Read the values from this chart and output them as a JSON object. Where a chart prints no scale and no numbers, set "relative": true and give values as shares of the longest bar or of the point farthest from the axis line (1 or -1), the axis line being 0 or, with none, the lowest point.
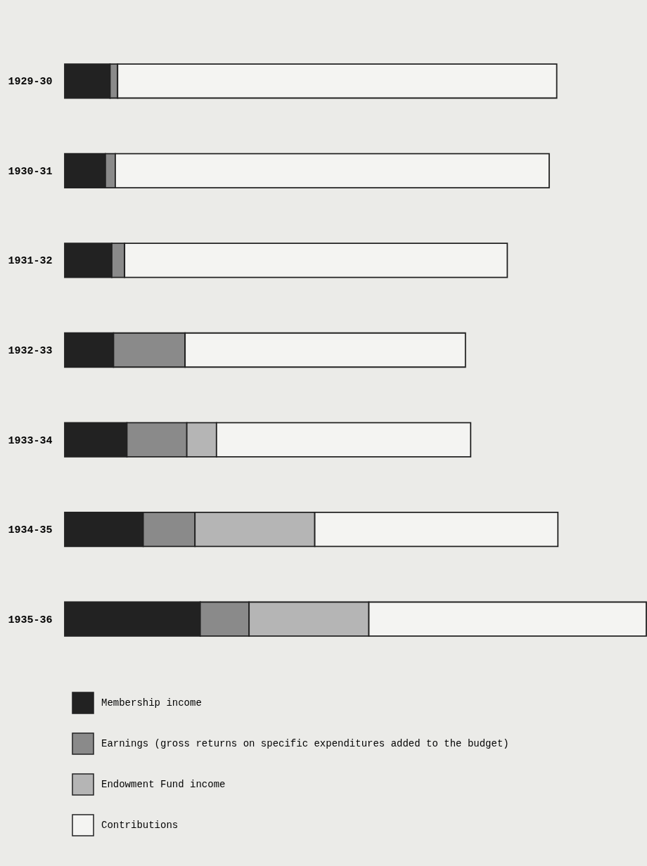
{
  "chart_data": {
    "type": "bar",
    "orientation": "horizontal",
    "stacked": true,
    "relative": true,
    "categories": [
      "1929-30",
      "1930-31",
      "1931-32",
      "1932-33",
      "1933-34",
      "1934-35",
      "1935-36"
    ],
    "series": [
      {
        "name": "Membership income",
        "color": "#222222",
        "values": [
          0.078,
          0.07,
          0.081,
          0.084,
          0.107,
          0.135,
          0.233
        ]
      },
      {
        "name": "Earnings (gross returns on specific expenditures added to the budget)",
        "color": "#8a8a8a",
        "values": [
          0.013,
          0.017,
          0.022,
          0.123,
          0.103,
          0.089,
          0.084
        ]
      },
      {
        "name": "Endowment Fund income",
        "color": "#b5b5b5",
        "values": [
          0,
          0,
          0,
          0,
          0.051,
          0.206,
          0.206
        ]
      },
      {
        "name": "Contributions",
        "color": "#f4f4f2",
        "values": [
          0.755,
          0.746,
          0.658,
          0.482,
          0.437,
          0.418,
          0.477
        ]
      }
    ],
    "legend": "bottom"
  }
}
